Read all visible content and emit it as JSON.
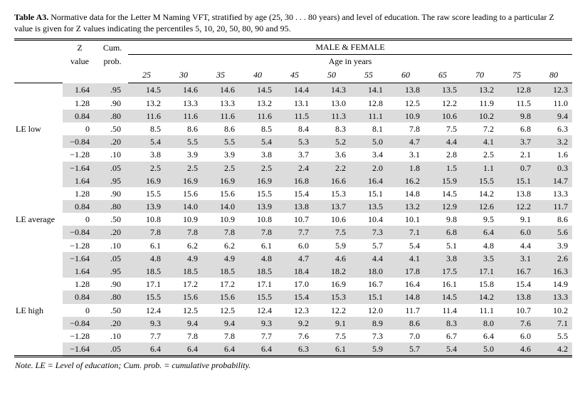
{
  "caption": {
    "label": "Table A3.",
    "text": "Normative data for the Letter M Naming VFT, stratified by age (25, 30 . . . 80 years) and level of education. The raw score leading to a particular Z value is given for Z values indicating the percentiles 5, 10, 20, 50, 80, 90 and 95."
  },
  "header": {
    "z_label": "Z value",
    "z_top": "Z",
    "z_bottom": "value",
    "prob_top": "Cum.",
    "prob_bottom": "prob.",
    "cum_prob_label": "Cum. prob.",
    "mf_label": "MALE & FEMALE",
    "age_label": "Age in years",
    "ages": [
      "25",
      "30",
      "35",
      "40",
      "45",
      "50",
      "55",
      "60",
      "65",
      "70",
      "75",
      "80"
    ]
  },
  "groups": [
    {
      "label": "LE low",
      "rows": [
        {
          "z": "1.64",
          "p": ".95",
          "v": [
            "14.5",
            "14.6",
            "14.6",
            "14.5",
            "14.4",
            "14.3",
            "14.1",
            "13.8",
            "13.5",
            "13.2",
            "12.8",
            "12.3"
          ]
        },
        {
          "z": "1.28",
          "p": ".90",
          "v": [
            "13.2",
            "13.3",
            "13.3",
            "13.2",
            "13.1",
            "13.0",
            "12.8",
            "12.5",
            "12.2",
            "11.9",
            "11.5",
            "11.0"
          ]
        },
        {
          "z": "0.84",
          "p": ".80",
          "v": [
            "11.6",
            "11.6",
            "11.6",
            "11.6",
            "11.5",
            "11.3",
            "11.1",
            "10.9",
            "10.6",
            "10.2",
            "9.8",
            "9.4"
          ]
        },
        {
          "z": "0",
          "p": ".50",
          "v": [
            "8.5",
            "8.6",
            "8.6",
            "8.5",
            "8.4",
            "8.3",
            "8.1",
            "7.8",
            "7.5",
            "7.2",
            "6.8",
            "6.3"
          ]
        },
        {
          "z": "−0.84",
          "p": ".20",
          "v": [
            "5.4",
            "5.5",
            "5.5",
            "5.4",
            "5.3",
            "5.2",
            "5.0",
            "4.7",
            "4.4",
            "4.1",
            "3.7",
            "3.2"
          ]
        },
        {
          "z": "−1.28",
          "p": ".10",
          "v": [
            "3.8",
            "3.9",
            "3.9",
            "3.8",
            "3.7",
            "3.6",
            "3.4",
            "3.1",
            "2.8",
            "2.5",
            "2.1",
            "1.6"
          ]
        },
        {
          "z": "−1.64",
          "p": ".05",
          "v": [
            "2.5",
            "2.5",
            "2.5",
            "2.5",
            "2.4",
            "2.2",
            "2.0",
            "1.8",
            "1.5",
            "1.1",
            "0.7",
            "0.3"
          ]
        }
      ]
    },
    {
      "label": "LE average",
      "rows": [
        {
          "z": "1.64",
          "p": ".95",
          "v": [
            "16.9",
            "16.9",
            "16.9",
            "16.9",
            "16.8",
            "16.6",
            "16.4",
            "16.2",
            "15.9",
            "15.5",
            "15.1",
            "14.7"
          ]
        },
        {
          "z": "1.28",
          "p": ".90",
          "v": [
            "15.5",
            "15.6",
            "15.6",
            "15.5",
            "15.4",
            "15.3",
            "15.1",
            "14.8",
            "14.5",
            "14.2",
            "13.8",
            "13.3"
          ]
        },
        {
          "z": "0.84",
          "p": ".80",
          "v": [
            "13.9",
            "14.0",
            "14.0",
            "13.9",
            "13.8",
            "13.7",
            "13.5",
            "13.2",
            "12.9",
            "12.6",
            "12.2",
            "11.7"
          ]
        },
        {
          "z": "0",
          "p": ".50",
          "v": [
            "10.8",
            "10.9",
            "10.9",
            "10.8",
            "10.7",
            "10.6",
            "10.4",
            "10.1",
            "9.8",
            "9.5",
            "9.1",
            "8.6"
          ]
        },
        {
          "z": "−0.84",
          "p": ".20",
          "v": [
            "7.8",
            "7.8",
            "7.8",
            "7.8",
            "7.7",
            "7.5",
            "7.3",
            "7.1",
            "6.8",
            "6.4",
            "6.0",
            "5.6"
          ]
        },
        {
          "z": "−1.28",
          "p": ".10",
          "v": [
            "6.1",
            "6.2",
            "6.2",
            "6.1",
            "6.0",
            "5.9",
            "5.7",
            "5.4",
            "5.1",
            "4.8",
            "4.4",
            "3.9"
          ]
        },
        {
          "z": "−1.64",
          "p": ".05",
          "v": [
            "4.8",
            "4.9",
            "4.9",
            "4.8",
            "4.7",
            "4.6",
            "4.4",
            "4.1",
            "3.8",
            "3.5",
            "3.1",
            "2.6"
          ]
        }
      ]
    },
    {
      "label": "LE high",
      "rows": [
        {
          "z": "1.64",
          "p": ".95",
          "v": [
            "18.5",
            "18.5",
            "18.5",
            "18.5",
            "18.4",
            "18.2",
            "18.0",
            "17.8",
            "17.5",
            "17.1",
            "16.7",
            "16.3"
          ]
        },
        {
          "z": "1.28",
          "p": ".90",
          "v": [
            "17.1",
            "17.2",
            "17.2",
            "17.1",
            "17.0",
            "16.9",
            "16.7",
            "16.4",
            "16.1",
            "15.8",
            "15.4",
            "14.9"
          ]
        },
        {
          "z": "0.84",
          "p": ".80",
          "v": [
            "15.5",
            "15.6",
            "15.6",
            "15.5",
            "15.4",
            "15.3",
            "15.1",
            "14.8",
            "14.5",
            "14.2",
            "13.8",
            "13.3"
          ]
        },
        {
          "z": "0",
          "p": ".50",
          "v": [
            "12.4",
            "12.5",
            "12.5",
            "12.4",
            "12.3",
            "12.2",
            "12.0",
            "11.7",
            "11.4",
            "11.1",
            "10.7",
            "10.2"
          ]
        },
        {
          "z": "−0.84",
          "p": ".20",
          "v": [
            "9.3",
            "9.4",
            "9.4",
            "9.3",
            "9.2",
            "9.1",
            "8.9",
            "8.6",
            "8.3",
            "8.0",
            "7.6",
            "7.1"
          ]
        },
        {
          "z": "−1.28",
          "p": ".10",
          "v": [
            "7.7",
            "7.8",
            "7.8",
            "7.7",
            "7.6",
            "7.5",
            "7.3",
            "7.0",
            "6.7",
            "6.4",
            "6.0",
            "5.5"
          ]
        },
        {
          "z": "−1.64",
          "p": ".05",
          "v": [
            "6.4",
            "6.4",
            "6.4",
            "6.4",
            "6.3",
            "6.1",
            "5.9",
            "5.7",
            "5.4",
            "5.0",
            "4.6",
            "4.2"
          ]
        }
      ]
    }
  ],
  "footnote": {
    "lead": "Note.",
    "text": " LE = Level of education; Cum. prob. = cumulative probability."
  },
  "style": {
    "shade_color": "#dcdcdc",
    "font_family": "Times New Roman",
    "body_fontsize_pt": 9,
    "shade_rows": [
      true,
      false,
      true,
      false,
      true,
      false,
      true
    ]
  }
}
